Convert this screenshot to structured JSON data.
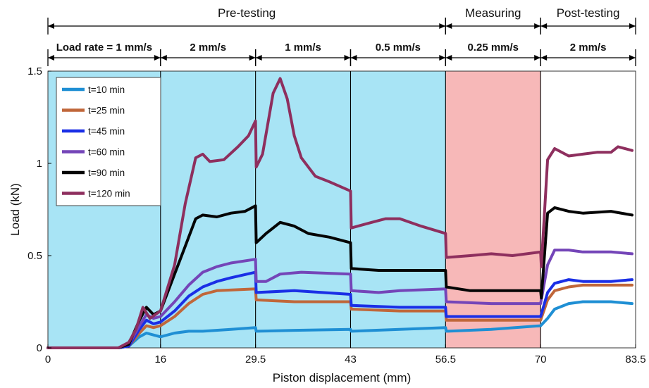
{
  "chart_data": {
    "type": "line",
    "xlabel": "Piston displacement (mm)",
    "ylabel": "Load (kN)",
    "xlim": [
      0,
      83.5
    ],
    "ylim": [
      0,
      1.5
    ],
    "x_ticks": [
      0,
      16,
      29.5,
      43,
      56.5,
      70,
      83.5
    ],
    "x_tick_labels": [
      "0",
      "16",
      "29.5",
      "43",
      "56.5",
      "70",
      "83.5"
    ],
    "y_ticks": [
      0,
      0.5,
      1,
      1.5
    ],
    "y_tick_labels": [
      "0",
      "0.5",
      "1",
      "1.5"
    ],
    "legend_position": "top-left",
    "grid": false,
    "phases": [
      {
        "label": "Pre-testing",
        "range": [
          0,
          56.5
        ],
        "color": "#a8e4f5"
      },
      {
        "label": "Measuring",
        "range": [
          56.5,
          70
        ],
        "color": "#f7b8b8"
      },
      {
        "label": "Post-testing",
        "range": [
          70,
          83.5
        ],
        "color": "#ffffff"
      }
    ],
    "load_rates": [
      {
        "label": "Load rate = 1 mm/s",
        "range": [
          0,
          16
        ]
      },
      {
        "label": "2 mm/s",
        "range": [
          16,
          29.5
        ]
      },
      {
        "label": "1 mm/s",
        "range": [
          29.5,
          43
        ]
      },
      {
        "label": "0.5 mm/s",
        "range": [
          43,
          56.5
        ]
      },
      {
        "label": "0.25 mm/s",
        "range": [
          56.5,
          70
        ]
      },
      {
        "label": "2 mm/s",
        "range": [
          70,
          83.5
        ]
      }
    ],
    "series": [
      {
        "name": "t=10 min",
        "color": "#1f8fd4",
        "points": [
          [
            0,
            0
          ],
          [
            10,
            0
          ],
          [
            11.5,
            0.01
          ],
          [
            13,
            0.06
          ],
          [
            14,
            0.08
          ],
          [
            15,
            0.07
          ],
          [
            16,
            0.06
          ],
          [
            18,
            0.08
          ],
          [
            20,
            0.09
          ],
          [
            22,
            0.09
          ],
          [
            26,
            0.1
          ],
          [
            29.5,
            0.11
          ],
          [
            29.6,
            0.09
          ],
          [
            35,
            0.095
          ],
          [
            43,
            0.1
          ],
          [
            43.1,
            0.09
          ],
          [
            50,
            0.1
          ],
          [
            56.5,
            0.11
          ],
          [
            56.6,
            0.09
          ],
          [
            63,
            0.1
          ],
          [
            70,
            0.12
          ],
          [
            71,
            0.16
          ],
          [
            72,
            0.21
          ],
          [
            74,
            0.24
          ],
          [
            76,
            0.25
          ],
          [
            80,
            0.25
          ],
          [
            83,
            0.24
          ]
        ]
      },
      {
        "name": "t=25 min",
        "color": "#c0673a",
        "points": [
          [
            0,
            0
          ],
          [
            10,
            0
          ],
          [
            11.5,
            0.01
          ],
          [
            13,
            0.08
          ],
          [
            14,
            0.12
          ],
          [
            15,
            0.11
          ],
          [
            16,
            0.12
          ],
          [
            18,
            0.17
          ],
          [
            20,
            0.24
          ],
          [
            22,
            0.29
          ],
          [
            24,
            0.31
          ],
          [
            29.5,
            0.32
          ],
          [
            29.6,
            0.26
          ],
          [
            35,
            0.25
          ],
          [
            43,
            0.25
          ],
          [
            43.1,
            0.21
          ],
          [
            50,
            0.2
          ],
          [
            56.5,
            0.2
          ],
          [
            56.6,
            0.15
          ],
          [
            63,
            0.15
          ],
          [
            70,
            0.15
          ],
          [
            71,
            0.26
          ],
          [
            72,
            0.31
          ],
          [
            74,
            0.33
          ],
          [
            76,
            0.34
          ],
          [
            80,
            0.34
          ],
          [
            83,
            0.34
          ]
        ]
      },
      {
        "name": "t=45 min",
        "color": "#1a2fe6",
        "points": [
          [
            0,
            0
          ],
          [
            10,
            0
          ],
          [
            11.5,
            0.01
          ],
          [
            13,
            0.1
          ],
          [
            14,
            0.15
          ],
          [
            15,
            0.13
          ],
          [
            16,
            0.14
          ],
          [
            18,
            0.2
          ],
          [
            20,
            0.28
          ],
          [
            22,
            0.33
          ],
          [
            24,
            0.36
          ],
          [
            26,
            0.38
          ],
          [
            29.5,
            0.41
          ],
          [
            29.6,
            0.3
          ],
          [
            35,
            0.31
          ],
          [
            43,
            0.29
          ],
          [
            43.1,
            0.23
          ],
          [
            50,
            0.22
          ],
          [
            56.5,
            0.22
          ],
          [
            56.6,
            0.17
          ],
          [
            63,
            0.17
          ],
          [
            70,
            0.17
          ],
          [
            71,
            0.3
          ],
          [
            72,
            0.35
          ],
          [
            74,
            0.37
          ],
          [
            76,
            0.36
          ],
          [
            80,
            0.36
          ],
          [
            83,
            0.37
          ]
        ]
      },
      {
        "name": "t=60 min",
        "color": "#7445b8",
        "points": [
          [
            0,
            0
          ],
          [
            10,
            0
          ],
          [
            11.5,
            0.02
          ],
          [
            13,
            0.12
          ],
          [
            14,
            0.18
          ],
          [
            15,
            0.16
          ],
          [
            16,
            0.17
          ],
          [
            18,
            0.25
          ],
          [
            20,
            0.34
          ],
          [
            22,
            0.41
          ],
          [
            24,
            0.44
          ],
          [
            26,
            0.46
          ],
          [
            29.5,
            0.48
          ],
          [
            29.6,
            0.36
          ],
          [
            31,
            0.36
          ],
          [
            33,
            0.4
          ],
          [
            36,
            0.41
          ],
          [
            43,
            0.4
          ],
          [
            43.1,
            0.31
          ],
          [
            47,
            0.3
          ],
          [
            50,
            0.31
          ],
          [
            56.5,
            0.32
          ],
          [
            56.6,
            0.25
          ],
          [
            63,
            0.24
          ],
          [
            70,
            0.24
          ],
          [
            71,
            0.45
          ],
          [
            72,
            0.53
          ],
          [
            74,
            0.53
          ],
          [
            76,
            0.52
          ],
          [
            80,
            0.52
          ],
          [
            83,
            0.51
          ]
        ]
      },
      {
        "name": "t=90 min",
        "color": "#050505",
        "points": [
          [
            0,
            0
          ],
          [
            10,
            0
          ],
          [
            11.5,
            0.02
          ],
          [
            13,
            0.15
          ],
          [
            14,
            0.22
          ],
          [
            15,
            0.18
          ],
          [
            16,
            0.2
          ],
          [
            18,
            0.4
          ],
          [
            19.5,
            0.55
          ],
          [
            21,
            0.7
          ],
          [
            22,
            0.72
          ],
          [
            24,
            0.71
          ],
          [
            26,
            0.73
          ],
          [
            28,
            0.74
          ],
          [
            29.5,
            0.77
          ],
          [
            29.6,
            0.57
          ],
          [
            31,
            0.62
          ],
          [
            33,
            0.68
          ],
          [
            35,
            0.66
          ],
          [
            37,
            0.62
          ],
          [
            40,
            0.6
          ],
          [
            43,
            0.57
          ],
          [
            43.1,
            0.43
          ],
          [
            47,
            0.42
          ],
          [
            50,
            0.42
          ],
          [
            56.5,
            0.42
          ],
          [
            56.6,
            0.33
          ],
          [
            60,
            0.31
          ],
          [
            63,
            0.31
          ],
          [
            67,
            0.31
          ],
          [
            70,
            0.31
          ],
          [
            70.1,
            0.27
          ],
          [
            71,
            0.73
          ],
          [
            72,
            0.76
          ],
          [
            74,
            0.74
          ],
          [
            76,
            0.73
          ],
          [
            80,
            0.74
          ],
          [
            83,
            0.72
          ]
        ]
      },
      {
        "name": "t=120 min",
        "color": "#8e2f5e",
        "points": [
          [
            0,
            0
          ],
          [
            10,
            0
          ],
          [
            11.5,
            0.03
          ],
          [
            12.5,
            0.1
          ],
          [
            13.5,
            0.22
          ],
          [
            14.5,
            0.16
          ],
          [
            16,
            0.2
          ],
          [
            18,
            0.45
          ],
          [
            19.5,
            0.78
          ],
          [
            21,
            1.03
          ],
          [
            22,
            1.05
          ],
          [
            23,
            1.01
          ],
          [
            25,
            1.02
          ],
          [
            27,
            1.09
          ],
          [
            28.5,
            1.15
          ],
          [
            29.5,
            1.23
          ],
          [
            29.6,
            0.98
          ],
          [
            30.5,
            1.05
          ],
          [
            32,
            1.38
          ],
          [
            33,
            1.46
          ],
          [
            34,
            1.35
          ],
          [
            35,
            1.15
          ],
          [
            36,
            1.03
          ],
          [
            38,
            0.93
          ],
          [
            40,
            0.9
          ],
          [
            43,
            0.85
          ],
          [
            43.1,
            0.65
          ],
          [
            46,
            0.68
          ],
          [
            48,
            0.7
          ],
          [
            50,
            0.7
          ],
          [
            53,
            0.66
          ],
          [
            56.5,
            0.62
          ],
          [
            56.6,
            0.49
          ],
          [
            60,
            0.5
          ],
          [
            63,
            0.51
          ],
          [
            66,
            0.5
          ],
          [
            70,
            0.52
          ],
          [
            70.1,
            0.44
          ],
          [
            71,
            1.02
          ],
          [
            72,
            1.08
          ],
          [
            74,
            1.04
          ],
          [
            76,
            1.05
          ],
          [
            78,
            1.06
          ],
          [
            80,
            1.06
          ],
          [
            81,
            1.09
          ],
          [
            83,
            1.07
          ]
        ]
      }
    ]
  }
}
